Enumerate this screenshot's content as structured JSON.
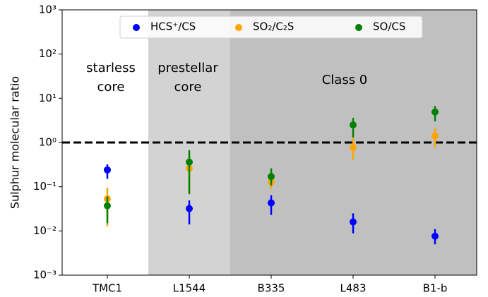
{
  "chart_data": {
    "type": "errorbar",
    "y_label": "Sulphur molecular ratio",
    "categories": [
      "TMC1",
      "L1544",
      "B335",
      "L483",
      "B1-b"
    ],
    "log_y": true,
    "ylim": [
      0.001,
      1000
    ],
    "yticks": [
      {
        "value": 0.001,
        "label": "10⁻³"
      },
      {
        "value": 0.01,
        "label": "10⁻²"
      },
      {
        "value": 0.1,
        "label": "10⁻¹"
      },
      {
        "value": 1,
        "label": "10⁰"
      },
      {
        "value": 10,
        "label": "10¹"
      },
      {
        "value": 100,
        "label": "10²"
      },
      {
        "value": 1000,
        "label": "10³"
      }
    ],
    "hline": 1,
    "legend": "upper center",
    "regions": [
      {
        "label": [
          "starless",
          "core"
        ],
        "color": "#ffffff"
      },
      {
        "label": [
          "prestellar",
          "core"
        ],
        "color": "#d3d3d3"
      },
      {
        "label": [
          "Class 0"
        ],
        "color": "#c0c0c0"
      }
    ],
    "series": [
      {
        "name": "HCS⁺/CS",
        "color": "#0000ff",
        "values": [
          0.24,
          0.032,
          0.043,
          0.016,
          0.0076
        ],
        "lower": [
          0.15,
          0.014,
          0.023,
          0.0088,
          0.005
        ],
        "upper": [
          0.32,
          0.049,
          0.064,
          0.025,
          0.011
        ]
      },
      {
        "name": "SO₂/C₂S",
        "color": "#ffa500",
        "values": [
          0.053,
          0.26,
          0.13,
          0.77,
          1.4
        ],
        "lower": [
          0.0127,
          0.068,
          0.088,
          0.41,
          0.77
        ],
        "upper": [
          0.095,
          0.45,
          0.2,
          1.4,
          2.1
        ]
      },
      {
        "name": "SO/CS",
        "color": "#008000",
        "values": [
          0.037,
          0.36,
          0.17,
          2.5,
          4.9
        ],
        "lower": [
          0.015,
          0.068,
          0.107,
          1.3,
          3.0
        ],
        "upper": [
          0.06,
          0.67,
          0.26,
          3.6,
          6.7
        ]
      }
    ]
  }
}
